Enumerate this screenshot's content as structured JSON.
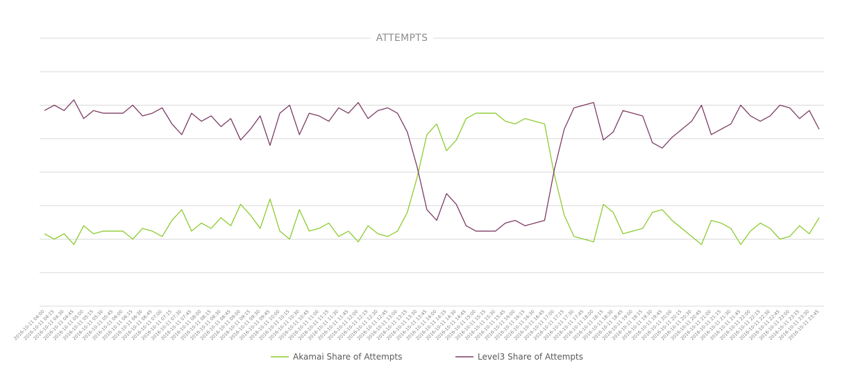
{
  "chart_data": {
    "type": "line",
    "title": "ATTEMPTS",
    "grid": true,
    "y_axis_labels_visible": false,
    "legend_position": "bottom",
    "ylim": [
      0,
      1
    ],
    "categories": [
      "2016-10-11 04:00",
      "2016-10-11 04:15",
      "2016-10-11 04:30",
      "2016-10-11 04:45",
      "2016-10-11 05:00",
      "2016-10-11 05:15",
      "2016-10-11 05:30",
      "2016-10-11 05:45",
      "2016-10-11 06:00",
      "2016-10-11 06:15",
      "2016-10-11 06:30",
      "2016-10-11 06:45",
      "2016-10-11 07:00",
      "2016-10-11 07:15",
      "2016-10-11 07:30",
      "2016-10-11 07:45",
      "2016-10-11 08:00",
      "2016-10-11 08:15",
      "2016-10-11 08:30",
      "2016-10-11 08:45",
      "2016-10-11 09:00",
      "2016-10-11 09:15",
      "2016-10-11 09:30",
      "2016-10-11 09:45",
      "2016-10-11 10:00",
      "2016-10-11 10:15",
      "2016-10-11 10:30",
      "2016-10-11 10:45",
      "2016-10-11 11:00",
      "2016-10-11 11:15",
      "2016-10-11 11:30",
      "2016-10-11 11:45",
      "2016-10-11 12:00",
      "2016-10-11 12:15",
      "2016-10-11 12:30",
      "2016-10-11 12:45",
      "2016-10-11 13:00",
      "2016-10-11 13:15",
      "2016-10-11 13:30",
      "2016-10-11 13:45",
      "2016-10-11 14:00",
      "2016-10-11 14:15",
      "2016-10-11 14:30",
      "2016-10-11 14:45",
      "2016-10-11 15:00",
      "2016-10-11 15:15",
      "2016-10-11 15:30",
      "2016-10-11 15:45",
      "2016-10-11 16:00",
      "2016-10-11 16:15",
      "2016-10-11 16:30",
      "2016-10-11 16:45",
      "2016-10-11 17:00",
      "2016-10-11 17:15",
      "2016-10-11 17:30",
      "2016-10-11 17:45",
      "2016-10-11 18:00",
      "2016-10-11 18:15",
      "2016-10-11 18:30",
      "2016-10-11 18:45",
      "2016-10-11 19:00",
      "2016-10-11 19:15",
      "2016-10-11 19:30",
      "2016-10-11 19:45",
      "2016-10-11 20:00",
      "2016-10-11 20:15",
      "2016-10-11 20:30",
      "2016-10-11 20:45",
      "2016-10-11 21:00",
      "2016-10-11 21:15",
      "2016-10-11 21:30",
      "2016-10-11 21:45",
      "2016-10-11 22:00",
      "2016-10-11 22:15",
      "2016-10-11 22:30",
      "2016-10-11 22:45",
      "2016-10-11 23:00",
      "2016-10-11 23:15",
      "2016-10-11 23:30",
      "2016-10-11 23:45"
    ],
    "tick_every": 1,
    "series": [
      {
        "name": "Akamai Share of Attempts",
        "color": "#8ccb2f",
        "values": [
          0.27,
          0.25,
          0.27,
          0.23,
          0.3,
          0.27,
          0.28,
          0.28,
          0.28,
          0.25,
          0.29,
          0.28,
          0.26,
          0.32,
          0.36,
          0.28,
          0.31,
          0.29,
          0.33,
          0.3,
          0.38,
          0.34,
          0.29,
          0.4,
          0.28,
          0.25,
          0.36,
          0.28,
          0.29,
          0.31,
          0.26,
          0.28,
          0.24,
          0.3,
          0.27,
          0.26,
          0.28,
          0.35,
          0.48,
          0.64,
          0.68,
          0.58,
          0.62,
          0.7,
          0.72,
          0.72,
          0.72,
          0.69,
          0.68,
          0.7,
          0.69,
          0.68,
          0.49,
          0.34,
          0.26,
          0.25,
          0.24,
          0.38,
          0.35,
          0.27,
          0.28,
          0.29,
          0.35,
          0.36,
          0.32,
          0.29,
          0.26,
          0.23,
          0.32,
          0.31,
          0.29,
          0.23,
          0.28,
          0.31,
          0.29,
          0.25,
          0.26,
          0.3,
          0.27,
          0.33
        ],
        "note": ""
      },
      {
        "name": "Level3 Share of Attempts",
        "color": "#7b3b63",
        "values": [
          0.73,
          0.75,
          0.73,
          0.77,
          0.7,
          0.73,
          0.72,
          0.72,
          0.72,
          0.75,
          0.71,
          0.72,
          0.74,
          0.68,
          0.64,
          0.72,
          0.69,
          0.71,
          0.67,
          0.7,
          0.62,
          0.66,
          0.71,
          0.6,
          0.72,
          0.75,
          0.64,
          0.72,
          0.71,
          0.69,
          0.74,
          0.72,
          0.76,
          0.7,
          0.73,
          0.74,
          0.72,
          0.65,
          0.52,
          0.36,
          0.32,
          0.42,
          0.38,
          0.3,
          0.28,
          0.28,
          0.28,
          0.31,
          0.32,
          0.3,
          0.31,
          0.32,
          0.51,
          0.66,
          0.74,
          0.75,
          0.76,
          0.62,
          0.65,
          0.73,
          0.72,
          0.71,
          0.61,
          0.59,
          0.63,
          0.66,
          0.69,
          0.75,
          0.64,
          0.66,
          0.68,
          0.75,
          0.71,
          0.69,
          0.71,
          0.75,
          0.74,
          0.7,
          0.73,
          0.66
        ]
      }
    ]
  }
}
